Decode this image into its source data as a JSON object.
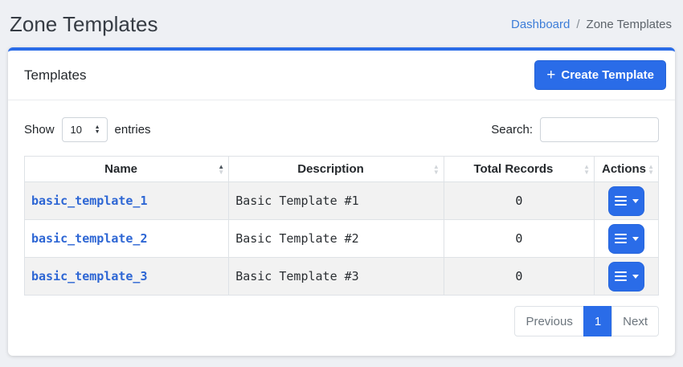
{
  "page": {
    "title": "Zone Templates",
    "breadcrumb": {
      "link": "Dashboard",
      "separator": "/",
      "current": "Zone Templates"
    }
  },
  "card": {
    "header_title": "Templates",
    "create_button": {
      "plus": "+",
      "label": "Create Template"
    }
  },
  "controls": {
    "show_label": "Show",
    "entries_selected": "10",
    "entries_label": "entries",
    "search_label": "Search:",
    "search_value": ""
  },
  "table": {
    "columns": [
      {
        "label": "Name",
        "sort": "asc"
      },
      {
        "label": "Description",
        "sort": "none"
      },
      {
        "label": "Total Records",
        "sort": "none"
      },
      {
        "label": "Actions",
        "sort": "none"
      }
    ],
    "rows": [
      {
        "name": "basic_template_1",
        "description": "Basic Template #1",
        "total_records": "0"
      },
      {
        "name": "basic_template_2",
        "description": "Basic Template #2",
        "total_records": "0"
      },
      {
        "name": "basic_template_3",
        "description": "Basic Template #3",
        "total_records": "0"
      }
    ]
  },
  "pagination": {
    "previous": "Previous",
    "pages": [
      "1"
    ],
    "active_page": "1",
    "next": "Next"
  },
  "icons": {
    "sort_up": "▲",
    "sort_down": "▼",
    "select_up": "▲",
    "select_down": "▼"
  },
  "colors": {
    "accent": "#2a6ce8",
    "breadcrumb_link": "#3d7dd8",
    "name_link": "#2d66d4",
    "page_background": "#eef0f4"
  }
}
